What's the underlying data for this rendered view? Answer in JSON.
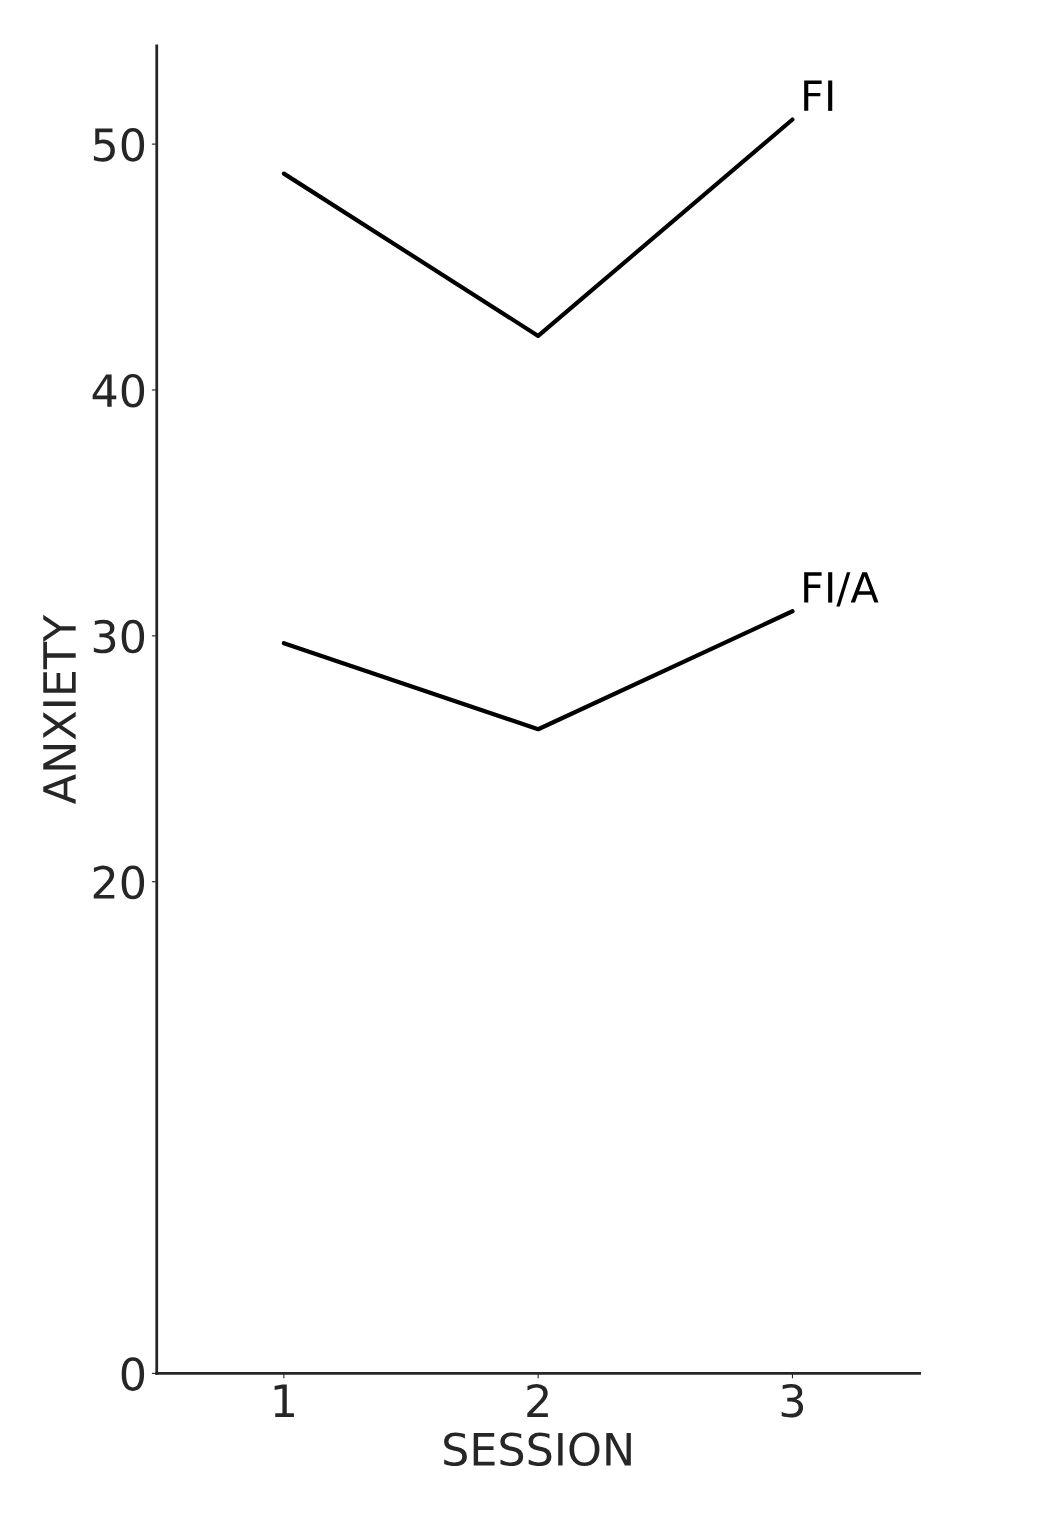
{
  "chart_data": {
    "type": "line",
    "xlabel": "SESSION",
    "ylabel": "ANXIETY",
    "x": [
      1,
      2,
      3
    ],
    "series": [
      {
        "name": "FI",
        "color": "#000000",
        "values": [
          48.8,
          42.2,
          51.0
        ]
      },
      {
        "name": "FI/A",
        "color": "#000000",
        "values": [
          29.7,
          26.2,
          31.0
        ]
      }
    ],
    "xlim": [
      0.5,
      3.5
    ],
    "xticks": [
      1,
      2,
      3
    ],
    "ylim": [
      0,
      54
    ],
    "yticks": [
      0,
      20,
      30,
      40,
      50
    ],
    "grid": false,
    "legend": false,
    "marker": "none",
    "line_style": "solid"
  }
}
